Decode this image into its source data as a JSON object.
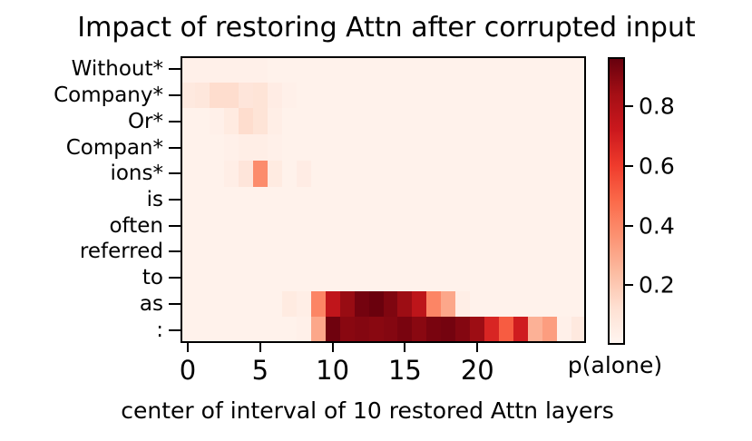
{
  "chart_data": {
    "type": "heatmap",
    "title": "Impact of restoring Attn after corrupted input",
    "xlabel": "center of interval of 10 restored Attn layers",
    "y_categories": [
      "Without*",
      "Company*",
      "Or*",
      "Compan*",
      "ions*",
      "is",
      "often",
      "referred",
      "to",
      "as",
      ":"
    ],
    "n_cols": 28,
    "x_ticks": [
      0,
      5,
      10,
      15,
      20
    ],
    "vmin": 0,
    "vmax": 0.966,
    "grid": false,
    "colorbar": {
      "label": "p(alone)",
      "ticks": [
        0.2,
        0.4,
        0.6,
        0.8
      ],
      "position": "right"
    },
    "colormap": {
      "name": "Reds",
      "stops": [
        {
          "pos": 0.0,
          "color": "#fff5f0"
        },
        {
          "pos": 0.125,
          "color": "#fee0d2"
        },
        {
          "pos": 0.25,
          "color": "#fcbba1"
        },
        {
          "pos": 0.375,
          "color": "#fc9272"
        },
        {
          "pos": 0.5,
          "color": "#fb6a4a"
        },
        {
          "pos": 0.625,
          "color": "#ef3b2c"
        },
        {
          "pos": 0.75,
          "color": "#cb181d"
        },
        {
          "pos": 0.875,
          "color": "#a50f15"
        },
        {
          "pos": 1.0,
          "color": "#67000d"
        }
      ]
    },
    "values": [
      [
        0.03,
        0.03,
        0.03,
        0.03,
        0.03,
        0.03,
        0.02,
        0.02,
        0.02,
        0.02,
        0.02,
        0.02,
        0.02,
        0.02,
        0.02,
        0.02,
        0.02,
        0.02,
        0.02,
        0.02,
        0.02,
        0.02,
        0.02,
        0.02,
        0.02,
        0.02,
        0.02,
        0.02
      ],
      [
        0.07,
        0.08,
        0.13,
        0.13,
        0.09,
        0.1,
        0.05,
        0.03,
        0.02,
        0.02,
        0.02,
        0.02,
        0.02,
        0.02,
        0.02,
        0.02,
        0.02,
        0.02,
        0.02,
        0.02,
        0.02,
        0.02,
        0.02,
        0.02,
        0.02,
        0.02,
        0.02,
        0.02
      ],
      [
        0.02,
        0.02,
        0.03,
        0.06,
        0.13,
        0.1,
        0.04,
        0.02,
        0.02,
        0.02,
        0.02,
        0.02,
        0.02,
        0.02,
        0.02,
        0.02,
        0.02,
        0.02,
        0.02,
        0.02,
        0.02,
        0.02,
        0.02,
        0.02,
        0.02,
        0.02,
        0.02,
        0.02
      ],
      [
        0.02,
        0.02,
        0.02,
        0.03,
        0.04,
        0.04,
        0.03,
        0.02,
        0.02,
        0.02,
        0.02,
        0.02,
        0.02,
        0.02,
        0.02,
        0.02,
        0.02,
        0.02,
        0.02,
        0.02,
        0.02,
        0.02,
        0.02,
        0.02,
        0.02,
        0.02,
        0.02,
        0.02
      ],
      [
        0.02,
        0.02,
        0.02,
        0.04,
        0.09,
        0.38,
        0.06,
        0.02,
        0.05,
        0.02,
        0.02,
        0.02,
        0.02,
        0.02,
        0.02,
        0.02,
        0.02,
        0.02,
        0.02,
        0.02,
        0.02,
        0.02,
        0.02,
        0.02,
        0.02,
        0.02,
        0.02,
        0.02
      ],
      [
        0.02,
        0.02,
        0.02,
        0.02,
        0.02,
        0.02,
        0.02,
        0.02,
        0.02,
        0.02,
        0.02,
        0.02,
        0.02,
        0.02,
        0.02,
        0.02,
        0.02,
        0.02,
        0.02,
        0.02,
        0.02,
        0.02,
        0.02,
        0.02,
        0.02,
        0.02,
        0.02,
        0.02
      ],
      [
        0.02,
        0.02,
        0.02,
        0.02,
        0.02,
        0.02,
        0.02,
        0.02,
        0.02,
        0.02,
        0.02,
        0.02,
        0.02,
        0.02,
        0.02,
        0.02,
        0.02,
        0.02,
        0.02,
        0.02,
        0.02,
        0.02,
        0.02,
        0.02,
        0.02,
        0.02,
        0.02,
        0.02
      ],
      [
        0.02,
        0.02,
        0.02,
        0.02,
        0.02,
        0.02,
        0.02,
        0.02,
        0.02,
        0.02,
        0.02,
        0.02,
        0.02,
        0.02,
        0.02,
        0.02,
        0.02,
        0.02,
        0.02,
        0.02,
        0.02,
        0.02,
        0.02,
        0.02,
        0.02,
        0.02,
        0.02,
        0.02
      ],
      [
        0.02,
        0.02,
        0.02,
        0.02,
        0.02,
        0.02,
        0.02,
        0.02,
        0.02,
        0.02,
        0.02,
        0.02,
        0.02,
        0.02,
        0.02,
        0.02,
        0.02,
        0.02,
        0.02,
        0.02,
        0.02,
        0.02,
        0.02,
        0.02,
        0.02,
        0.02,
        0.02,
        0.02
      ],
      [
        0.02,
        0.02,
        0.02,
        0.02,
        0.02,
        0.02,
        0.02,
        0.06,
        0.04,
        0.4,
        0.76,
        0.87,
        0.94,
        0.96,
        0.92,
        0.86,
        0.77,
        0.4,
        0.3,
        0.04,
        0.02,
        0.02,
        0.02,
        0.02,
        0.02,
        0.02,
        0.02,
        0.02
      ],
      [
        0.02,
        0.02,
        0.02,
        0.02,
        0.02,
        0.02,
        0.02,
        0.02,
        0.03,
        0.3,
        0.95,
        0.9,
        0.91,
        0.9,
        0.91,
        0.93,
        0.9,
        0.93,
        0.94,
        0.91,
        0.86,
        0.68,
        0.52,
        0.71,
        0.27,
        0.33,
        0.03,
        0.07
      ]
    ]
  }
}
